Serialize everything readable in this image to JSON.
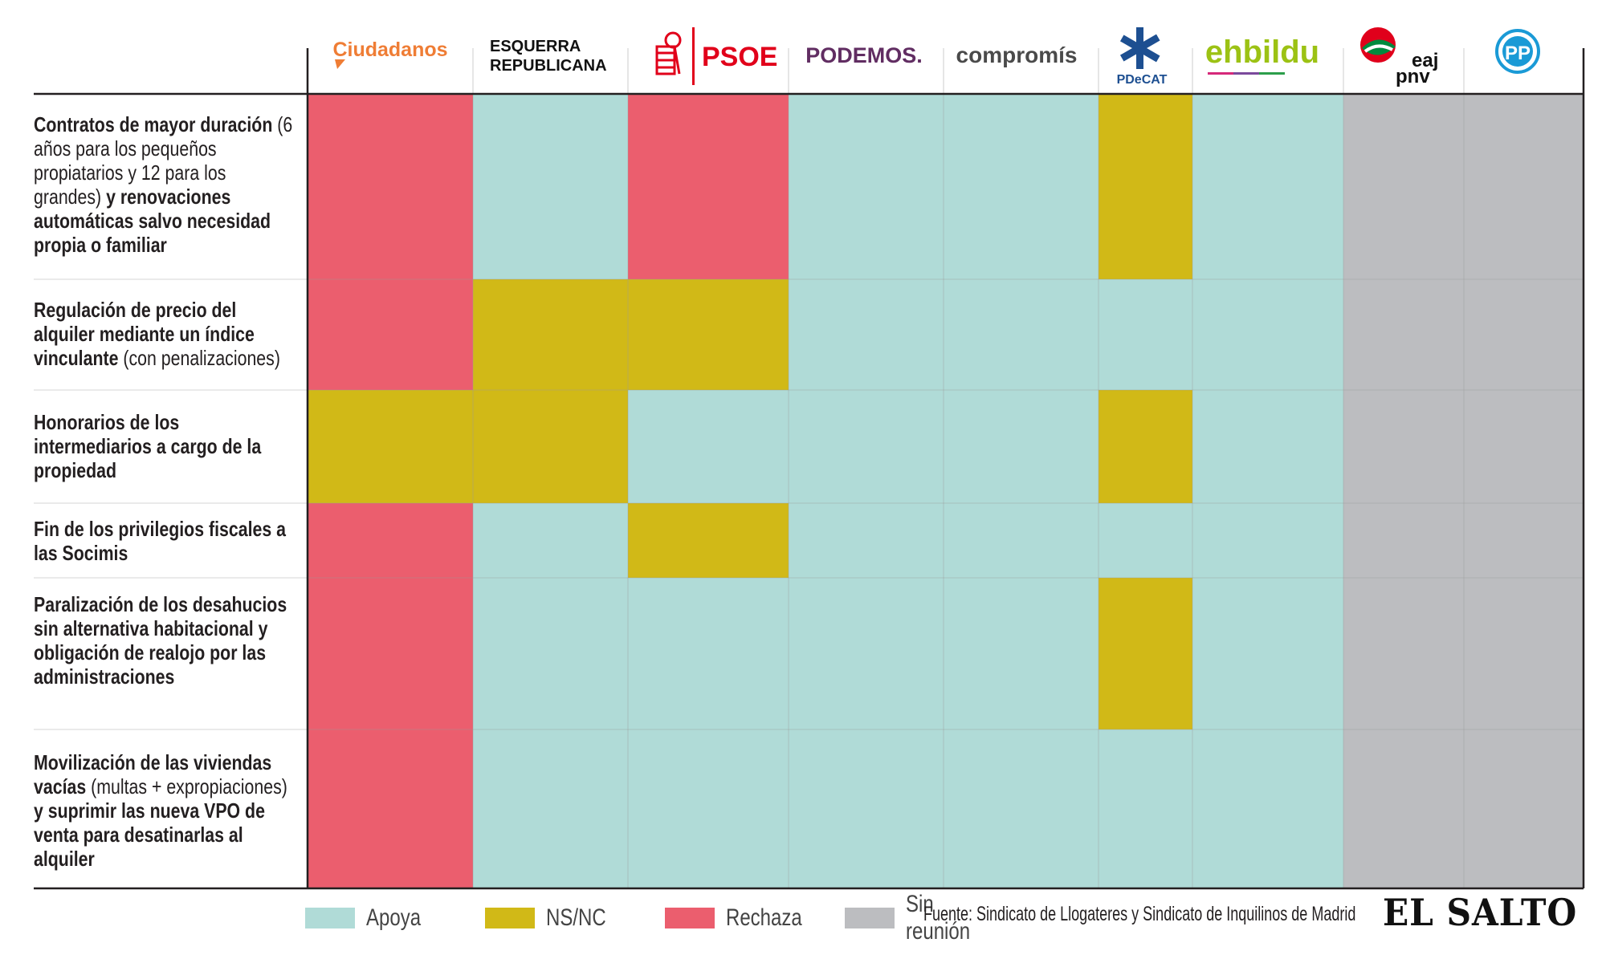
{
  "parties": [
    {
      "name": "Ciudadanos"
    },
    {
      "name": "ESQUERRA REPUBLICANA"
    },
    {
      "name": "PSOE"
    },
    {
      "name": "PODEMOS."
    },
    {
      "name": "compromís"
    },
    {
      "name": "PDeCAT"
    },
    {
      "name": "ehbildu"
    },
    {
      "name": "eaj pnv"
    },
    {
      "name": "PP"
    }
  ],
  "rows": [
    {
      "parts": [
        {
          "t": "Contratos de mayor duración",
          "b": true
        },
        {
          "t": " (6 años para los pequeños propiatarios y 12 para los grandes) ",
          "b": false
        },
        {
          "t": "y renovaciones automáticas salvo necesidad propia o familiar",
          "b": true
        }
      ]
    },
    {
      "parts": [
        {
          "t": "Regulación de precio del alquiler mediante un índice vinculante",
          "b": true
        },
        {
          "t": " (con penalizaciones)",
          "b": false
        }
      ]
    },
    {
      "parts": [
        {
          "t": "Honorarios de los intermediarios a cargo de la propiedad",
          "b": true
        }
      ]
    },
    {
      "parts": [
        {
          "t": "Fin de los privilegios fiscales a las Socimis",
          "b": true
        }
      ]
    },
    {
      "parts": [
        {
          "t": "Paralización de los desahucios sin alternativa habitacional y obligación de realojo por las administraciones",
          "b": true
        }
      ]
    },
    {
      "parts": [
        {
          "t": "Movilización de las viviendas vacías",
          "b": true
        },
        {
          "t": " (multas + expropiaciones) ",
          "b": false
        },
        {
          "t": "y suprimir las nueva VPO de venta para desatinarlas al alquiler",
          "b": true
        }
      ]
    }
  ],
  "chart_data": {
    "type": "heatmap",
    "categories": [
      "Ciudadanos",
      "ESQUERRA REPUBLICANA",
      "PSOE",
      "PODEMOS.",
      "compromís",
      "PDeCAT",
      "ehbildu",
      "eaj pnv",
      "PP"
    ],
    "values": [
      [
        "Rechaza",
        "Apoya",
        "Rechaza",
        "Apoya",
        "Apoya",
        "NS/NC",
        "Apoya",
        "Sin reunión",
        "Sin reunión"
      ],
      [
        "Rechaza",
        "NS/NC",
        "NS/NC",
        "Apoya",
        "Apoya",
        "Apoya",
        "Apoya",
        "Sin reunión",
        "Sin reunión"
      ],
      [
        "NS/NC",
        "NS/NC",
        "Apoya",
        "Apoya",
        "Apoya",
        "NS/NC",
        "Apoya",
        "Sin reunión",
        "Sin reunión"
      ],
      [
        "Rechaza",
        "Apoya",
        "NS/NC",
        "Apoya",
        "Apoya",
        "Apoya",
        "Apoya",
        "Sin reunión",
        "Sin reunión"
      ],
      [
        "Rechaza",
        "Apoya",
        "Apoya",
        "Apoya",
        "Apoya",
        "NS/NC",
        "Apoya",
        "Sin reunión",
        "Sin reunión"
      ],
      [
        "Rechaza",
        "Apoya",
        "Apoya",
        "Apoya",
        "Apoya",
        "Apoya",
        "Apoya",
        "Sin reunión",
        "Sin reunión"
      ]
    ],
    "legend": [
      {
        "label": "Apoya",
        "color": "#b0dbd7"
      },
      {
        "label": "NS/NC",
        "color": "#d1b917"
      },
      {
        "label": "Rechaza",
        "color": "#eb5e6e"
      },
      {
        "label": "Sin reunión",
        "color": "#bcbdc0"
      }
    ],
    "legend_position": "bottom",
    "grid": true
  },
  "source": "Fuente: Sindicato de Llogateres y Sindicato de Inquilinos de Madrid",
  "brand": "EL SALTO",
  "colors": {
    "ciudadanos": "#ef7d35",
    "psoe": "#e1001a",
    "podemos": "#612d62",
    "compromis": "#4a4a4a",
    "pdecat": "#1d4f91",
    "ehbildu": "#9cc214",
    "pnv_green": "#008a3e",
    "pnv_red": "#e0001b",
    "pp": "#1a9ad6"
  }
}
